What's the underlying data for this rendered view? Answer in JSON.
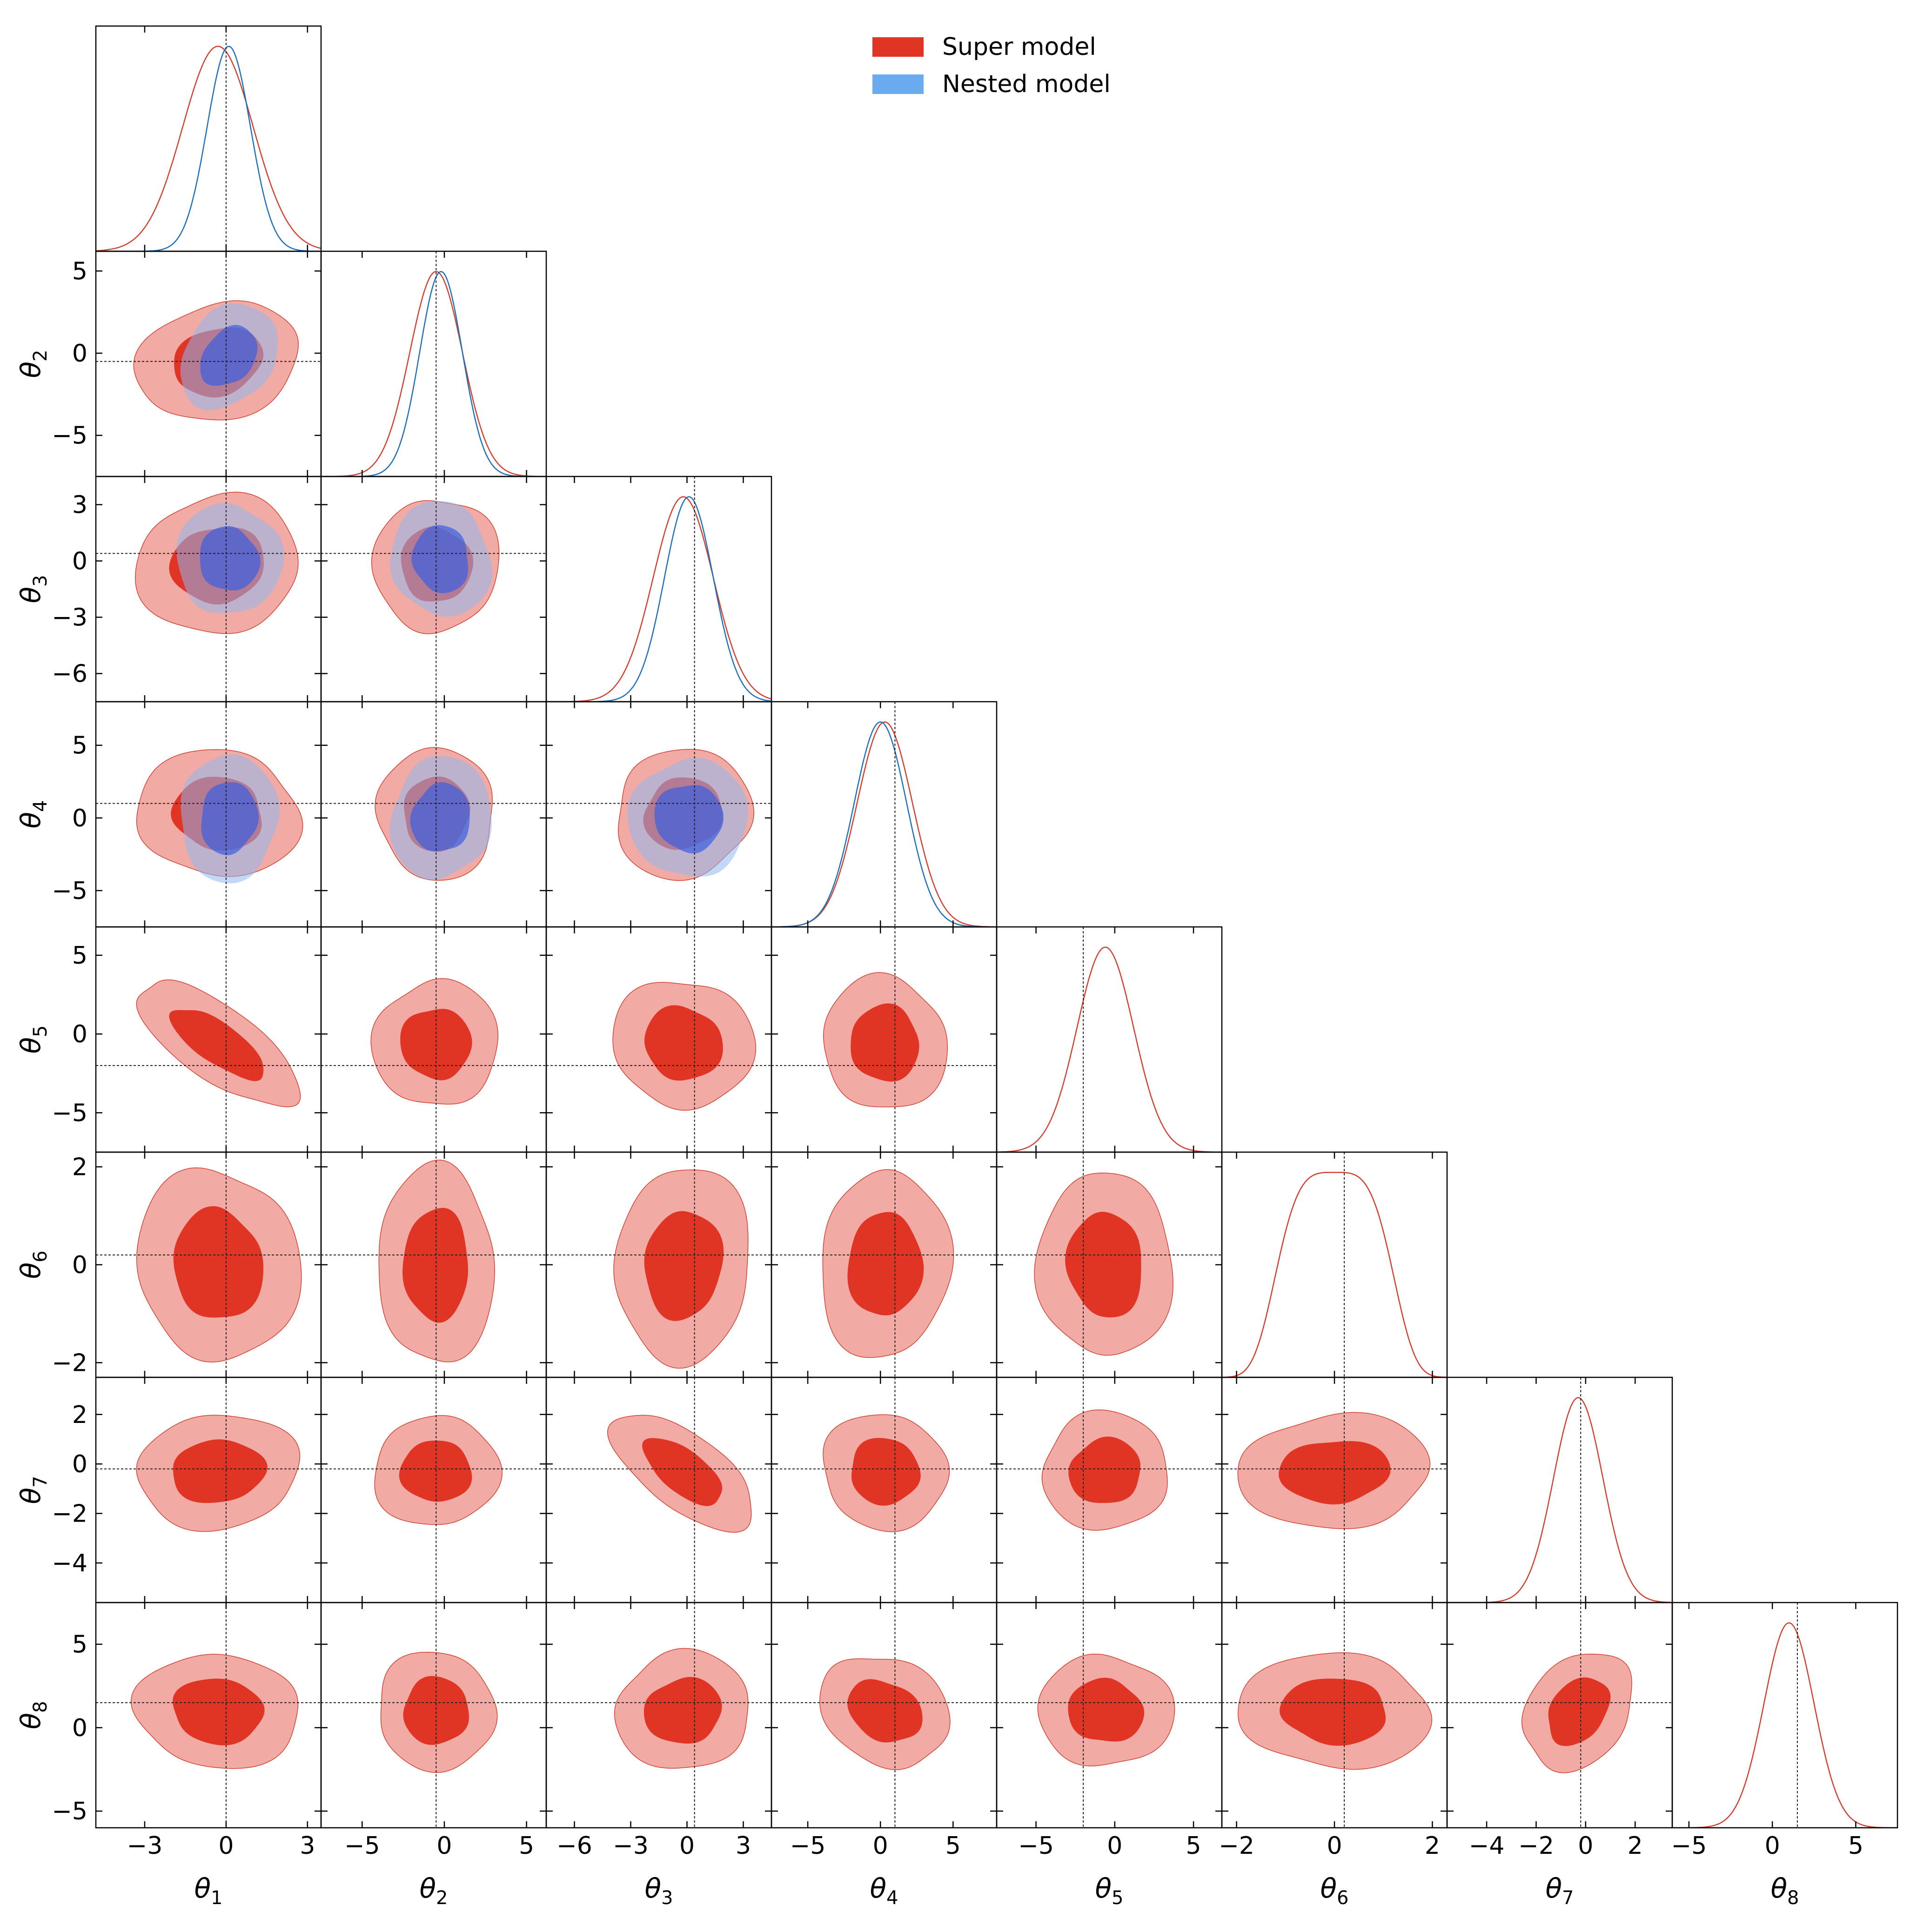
{
  "chart_data": {
    "type": "corner",
    "legend": {
      "placement": "top-center",
      "entries": [
        {
          "name": "Super model",
          "color": "#e03424"
        },
        {
          "name": "Nested model",
          "color": "#6aaaf0"
        }
      ]
    },
    "colors": {
      "super_fill_inner": "#e03424",
      "super_fill_outer": "#f2aaa4",
      "super_line": "#d04030",
      "nested_fill_inner": "#3a5ee0",
      "nested_fill_outer": "#8fb8f0",
      "nested_line": "#1f6fb8",
      "truth_line": "#222222"
    },
    "params": [
      {
        "name": "θ",
        "sub": "1",
        "range": [
          -4.8,
          3.5
        ],
        "ticks": [
          -3,
          0,
          3
        ],
        "truth": 0.0,
        "super": {
          "mean": -0.3,
          "sd": 1.3
        },
        "nested": {
          "mean": 0.1,
          "sd": 0.8
        }
      },
      {
        "name": "θ",
        "sub": "2",
        "range": [
          -7.5,
          6.2
        ],
        "ticks": [
          -5,
          0,
          5
        ],
        "truth": -0.5,
        "super": {
          "mean": -0.5,
          "sd": 1.6
        },
        "nested": {
          "mean": -0.2,
          "sd": 1.3
        }
      },
      {
        "name": "θ",
        "sub": "3",
        "range": [
          -7.5,
          4.5
        ],
        "ticks": [
          -6,
          -3,
          0,
          3
        ],
        "truth": 0.4,
        "super": {
          "mean": -0.2,
          "sd": 1.6
        },
        "nested": {
          "mean": 0.1,
          "sd": 1.3
        }
      },
      {
        "name": "θ",
        "sub": "4",
        "range": [
          -7.5,
          8.0
        ],
        "ticks": [
          -5,
          0,
          5
        ],
        "truth": 1.0,
        "super": {
          "mean": 0.3,
          "sd": 1.9
        },
        "nested": {
          "mean": 0.0,
          "sd": 1.8
        }
      },
      {
        "name": "θ",
        "sub": "5",
        "range": [
          -7.5,
          6.8
        ],
        "ticks": [
          -5,
          0,
          5
        ],
        "truth": -2.0,
        "super": {
          "mean": -0.6,
          "sd": 1.8
        }
      },
      {
        "name": "θ",
        "sub": "6",
        "range": [
          -2.3,
          2.3
        ],
        "ticks": [
          -2,
          0,
          2
        ],
        "truth": 0.2,
        "super": {
          "mean": 0.0,
          "sd": 0.85,
          "flat": true
        }
      },
      {
        "name": "θ",
        "sub": "7",
        "range": [
          -5.6,
          3.5
        ],
        "ticks": [
          -4,
          -2,
          0,
          2
        ],
        "truth": -0.2,
        "super": {
          "mean": -0.3,
          "sd": 1.0
        }
      },
      {
        "name": "θ",
        "sub": "8",
        "range": [
          -6.0,
          7.5
        ],
        "ticks": [
          -5,
          0,
          5
        ],
        "truth": 1.5,
        "super": {
          "mean": 1.0,
          "sd": 1.5
        }
      }
    ]
  }
}
